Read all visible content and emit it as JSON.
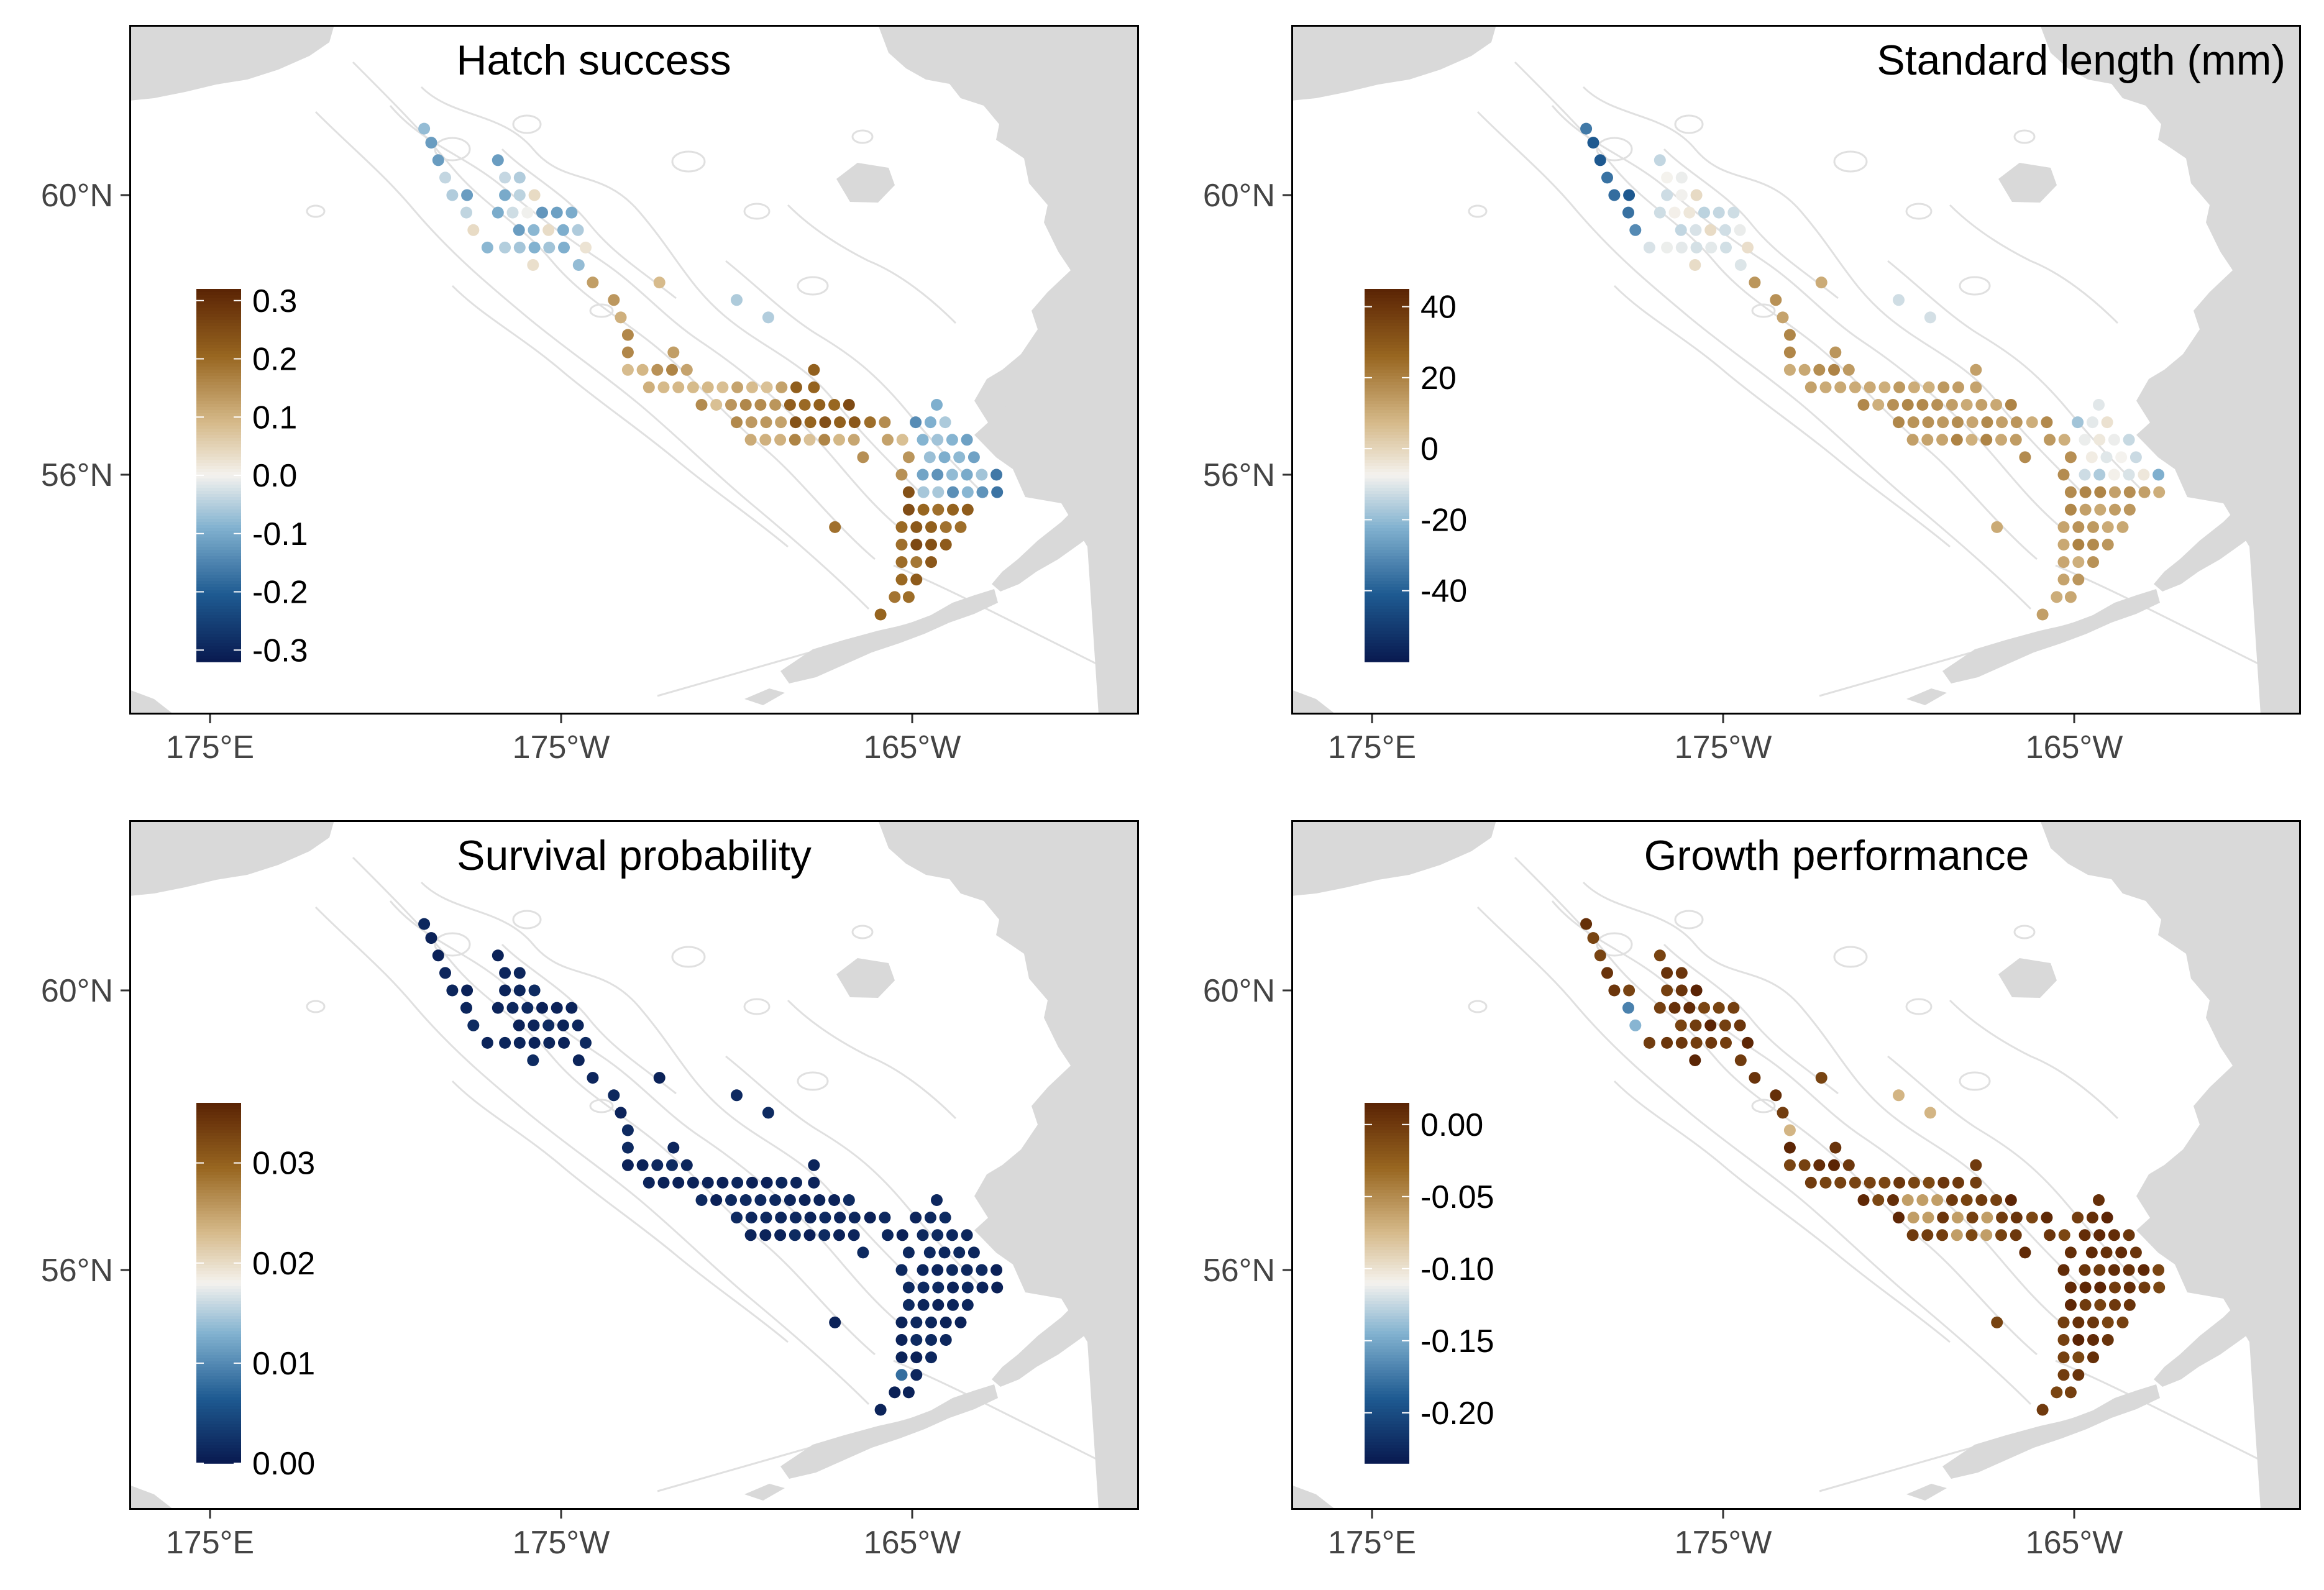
{
  "figure": {
    "x_tick_labels": [
      "175°E",
      "175°W",
      "165°W"
    ],
    "y_tick_labels": [
      "60°N",
      "56°N"
    ],
    "colors": {
      "land": "#d9d9d9",
      "contour": "#e0e0e0",
      "panel_border": "#000000",
      "axis_text": "#444444",
      "scale_low": "#08194f",
      "scale_mid": "#f4f2ee",
      "scale_high": "#5a2304"
    },
    "panels": [
      {
        "id": "hatch",
        "title": "Hatch success",
        "legend_labels": [
          "0.3",
          "0.2",
          "0.1",
          "0.0",
          "-0.1",
          "-0.2",
          "-0.3"
        ],
        "range": [
          -0.32,
          0.32
        ],
        "pattern": "hatch"
      },
      {
        "id": "length",
        "title": "Standard length (mm)",
        "legend_labels": [
          "40",
          "20",
          "0",
          "-20",
          "-40"
        ],
        "range": [
          -60,
          45
        ],
        "pattern": "length"
      },
      {
        "id": "survival",
        "title": "Survival probability",
        "legend_labels": [
          "0.03",
          "0.02",
          "0.01",
          "0.00"
        ],
        "range": [
          0.0,
          0.036
        ],
        "pattern": "survival"
      },
      {
        "id": "growth",
        "title": "Growth performance",
        "legend_labels": [
          "0.00",
          "-0.05",
          "-0.10",
          "-0.15",
          "-0.20"
        ],
        "range": [
          -0.235,
          0.015
        ],
        "pattern": "growth"
      }
    ]
  }
}
